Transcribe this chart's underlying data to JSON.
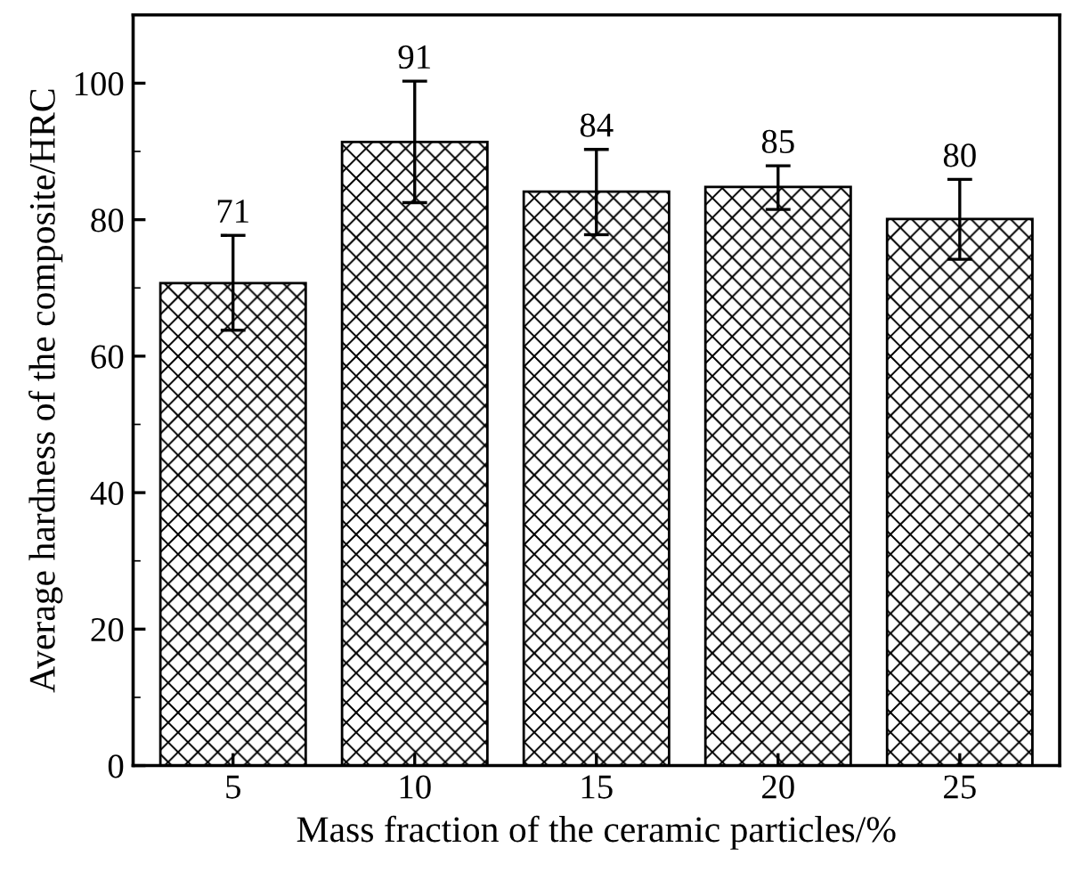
{
  "chart_data": {
    "type": "bar",
    "xlabel": "Mass fraction of the ceramic particles/%",
    "ylabel": "Average hardness of the composite/HRC",
    "categories": [
      "5",
      "10",
      "15",
      "20",
      "25"
    ],
    "values": [
      70.7,
      91.4,
      84.1,
      84.8,
      80.1
    ],
    "value_labels": [
      "71",
      "91",
      "84",
      "85",
      "80"
    ],
    "errors": [
      [
        63.8,
        77.7
      ],
      [
        82.5,
        100.3
      ],
      [
        77.8,
        90.3
      ],
      [
        81.5,
        87.9
      ],
      [
        74.2,
        85.9
      ]
    ],
    "color": "#000000",
    "ylim": [
      0,
      110
    ],
    "yticks": [
      0,
      20,
      40,
      60,
      80,
      100
    ],
    "grid": false,
    "legend": false
  }
}
